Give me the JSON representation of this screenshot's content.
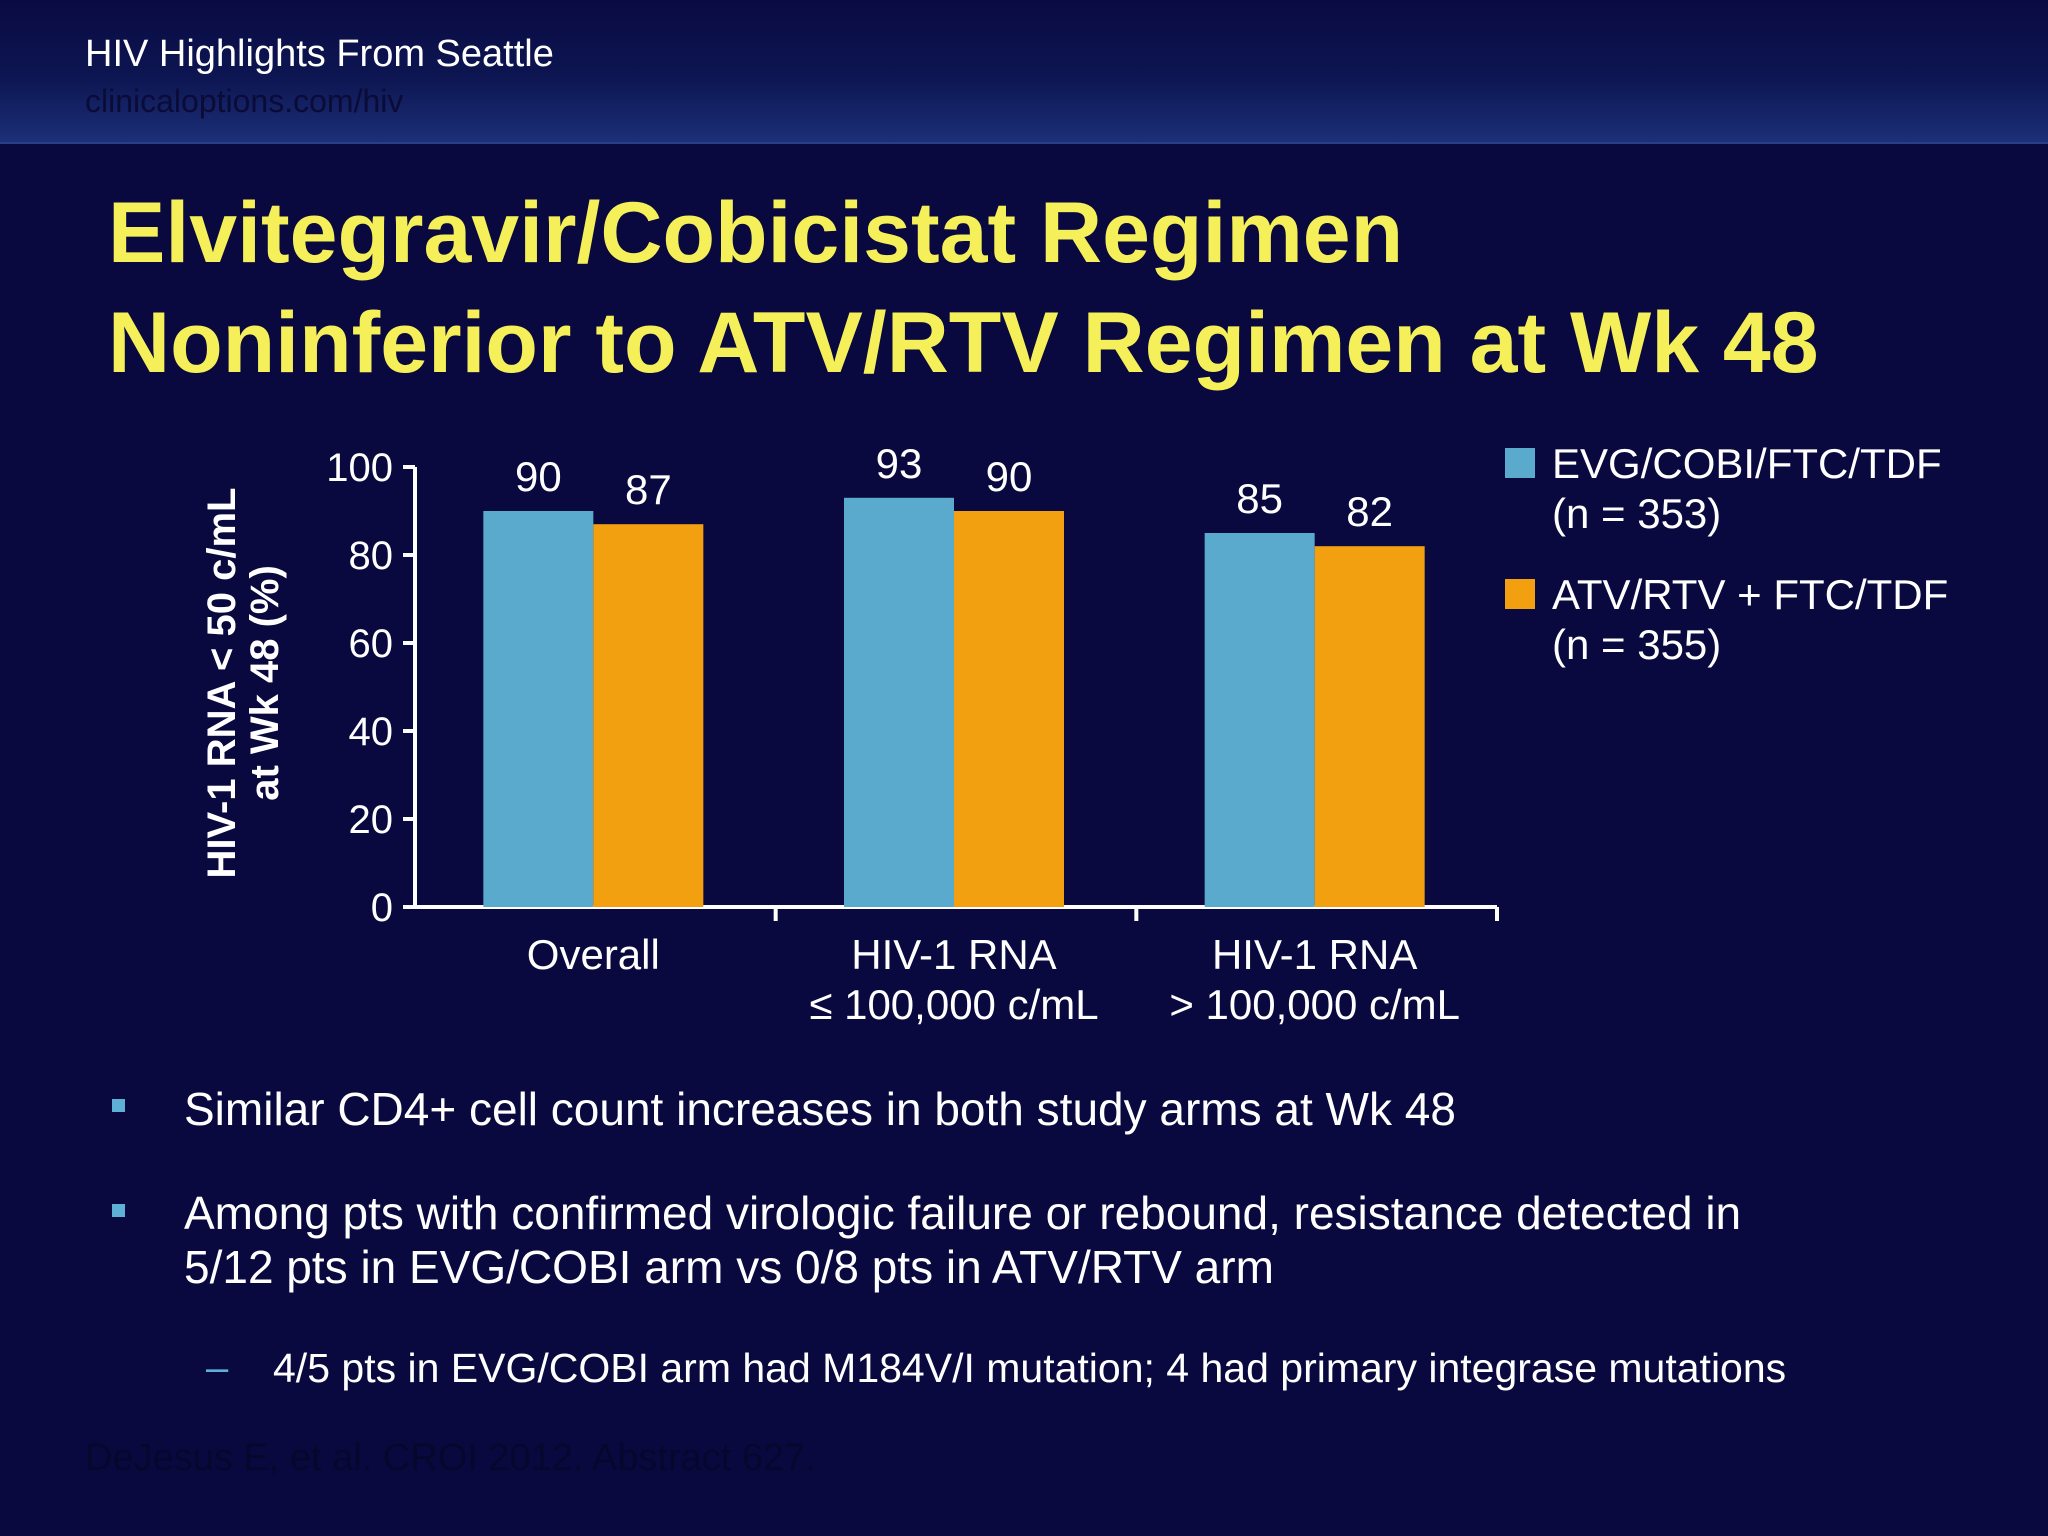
{
  "header": {
    "title": "HIV Highlights From Seattle",
    "subtitle": "clinicaloptions.com/hiv"
  },
  "slide": {
    "title_lines": [
      "Elvitegravir/Cobicistat Regimen",
      "Noninferior to ATV/RTV Regimen at Wk 48"
    ]
  },
  "colors": {
    "background": "#09093f",
    "title": "#f5f05a",
    "series1": "#5aaacd",
    "series2": "#f2a00f",
    "bullet": "#5fb0d6"
  },
  "chart_data": {
    "type": "bar",
    "ylabel_lines": [
      "HIV-1 RNA < 50 c/mL",
      "at Wk 48 (%)"
    ],
    "ylim": [
      0,
      100
    ],
    "yticks": [
      0,
      20,
      40,
      60,
      80,
      100
    ],
    "categories": [
      [
        "Overall"
      ],
      [
        "HIV-1 RNA",
        "≤ 100,000 c/mL"
      ],
      [
        "HIV-1 RNA",
        "> 100,000 c/mL"
      ]
    ],
    "series": [
      {
        "name_lines": [
          "EVG/COBI/FTC/TDF",
          "(n = 353)"
        ],
        "values": [
          90,
          93,
          85
        ]
      },
      {
        "name_lines": [
          "ATV/RTV + FTC/TDF",
          "(n = 355)"
        ],
        "values": [
          87,
          90,
          82
        ]
      }
    ],
    "legend_position": "top-right",
    "grid": false
  },
  "bullets": [
    "Similar CD4+ cell count increases in both study arms at Wk 48",
    "Among pts with confirmed virologic failure or rebound, resistance detected in",
    "5/12 pts in EVG/COBI arm vs 0/8 pts in ATV/RTV arm"
  ],
  "sub_bullets": [
    "4/5 pts in EVG/COBI arm had M184V/I mutation; 4 had primary integrase mutations"
  ],
  "footer": "DeJesus E, et al. CROI 2012. Abstract 627."
}
